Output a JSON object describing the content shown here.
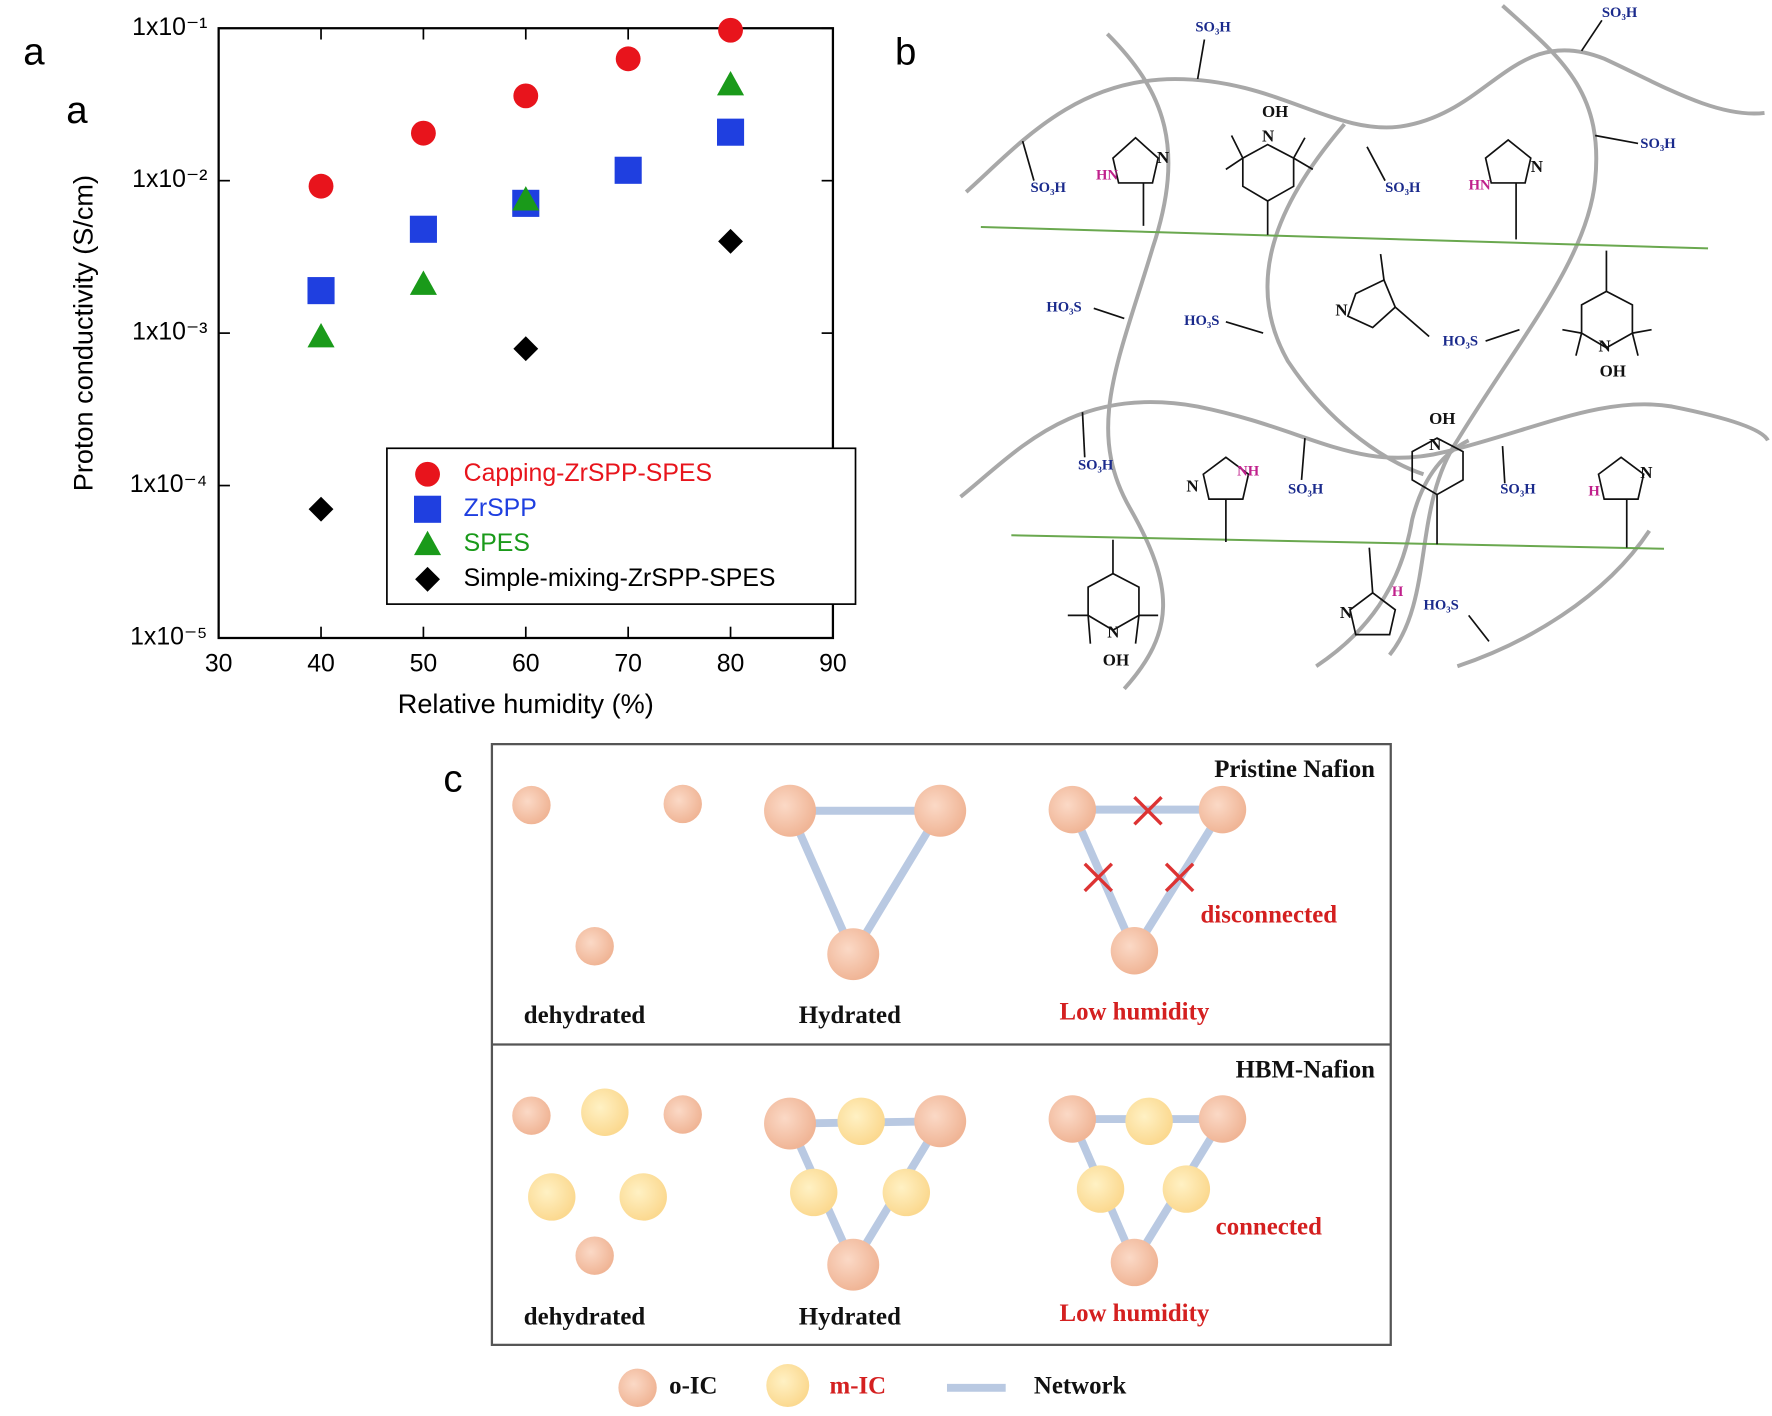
{
  "chart_data": {
    "type": "scatter",
    "panel_labels": [
      "a",
      "a"
    ],
    "x_label": "Relative humidity (%)",
    "y_label": "Proton conductivity (S/cm)",
    "x": [
      40,
      50,
      60,
      70,
      80
    ],
    "log_y": true,
    "xlim": [
      30,
      90
    ],
    "xticks": [
      30,
      40,
      50,
      60,
      70,
      80,
      90
    ],
    "ylim": [
      1e-05,
      0.1
    ],
    "yticks": [
      {
        "value": 0.1,
        "label": "1x10⁻¹"
      },
      {
        "value": 0.01,
        "label": "1x10⁻²"
      },
      {
        "value": 0.001,
        "label": "1x10⁻³"
      },
      {
        "value": 0.0001,
        "label": "1x10⁻⁴"
      },
      {
        "value": 1e-05,
        "label": "1x10⁻⁵"
      }
    ],
    "legend": "lower right",
    "series": [
      {
        "name": "Capping-ZrSPP-SPES",
        "color": "#e8141c",
        "marker": "circle",
        "values": [
          0.0092,
          0.0205,
          0.036,
          0.063,
          0.097
        ]
      },
      {
        "name": "ZrSPP",
        "color": "#1f3fe0",
        "marker": "square",
        "values": [
          0.0019,
          0.0048,
          0.0071,
          0.0117,
          0.0208
        ]
      },
      {
        "name": "SPES",
        "color": "#1a9a1a",
        "marker": "triangle",
        "values": [
          0.00095,
          0.0021,
          0.0075,
          null,
          0.0427
        ]
      },
      {
        "name": "Simple-mixing-ZrSPP-SPES",
        "color": "#000000",
        "marker": "diamond",
        "values": [
          7e-05,
          null,
          0.00079,
          null,
          0.004
        ]
      }
    ]
  },
  "panel_b": {
    "label": "b",
    "texts": [
      "SO₃H",
      "SO₃H",
      "SO₃H",
      "SO₃H",
      "SO₃H",
      "SO₃H",
      "SO₃H",
      "SO₃H",
      "HO₃S",
      "HO₃S",
      "HO₃S",
      "HO₃S",
      "OH",
      "OH",
      "OH",
      "OH",
      "N",
      "N",
      "N",
      "N",
      "N",
      "N",
      "N",
      "N",
      "N",
      "N",
      "HN",
      "HN",
      "NH",
      "H",
      "H"
    ]
  },
  "panel_c": {
    "label": "c",
    "top": {
      "title": "Pristine Nafion",
      "states": [
        "dehydrated",
        "Hydrated",
        "Low humidity"
      ],
      "note": "disconnected"
    },
    "bottom": {
      "title": "HBM-Nafion",
      "states": [
        "dehydrated",
        "Hydrated",
        "Low humidity"
      ],
      "note": "connected"
    },
    "legend": [
      "o-IC",
      "m-IC",
      "Network"
    ]
  }
}
